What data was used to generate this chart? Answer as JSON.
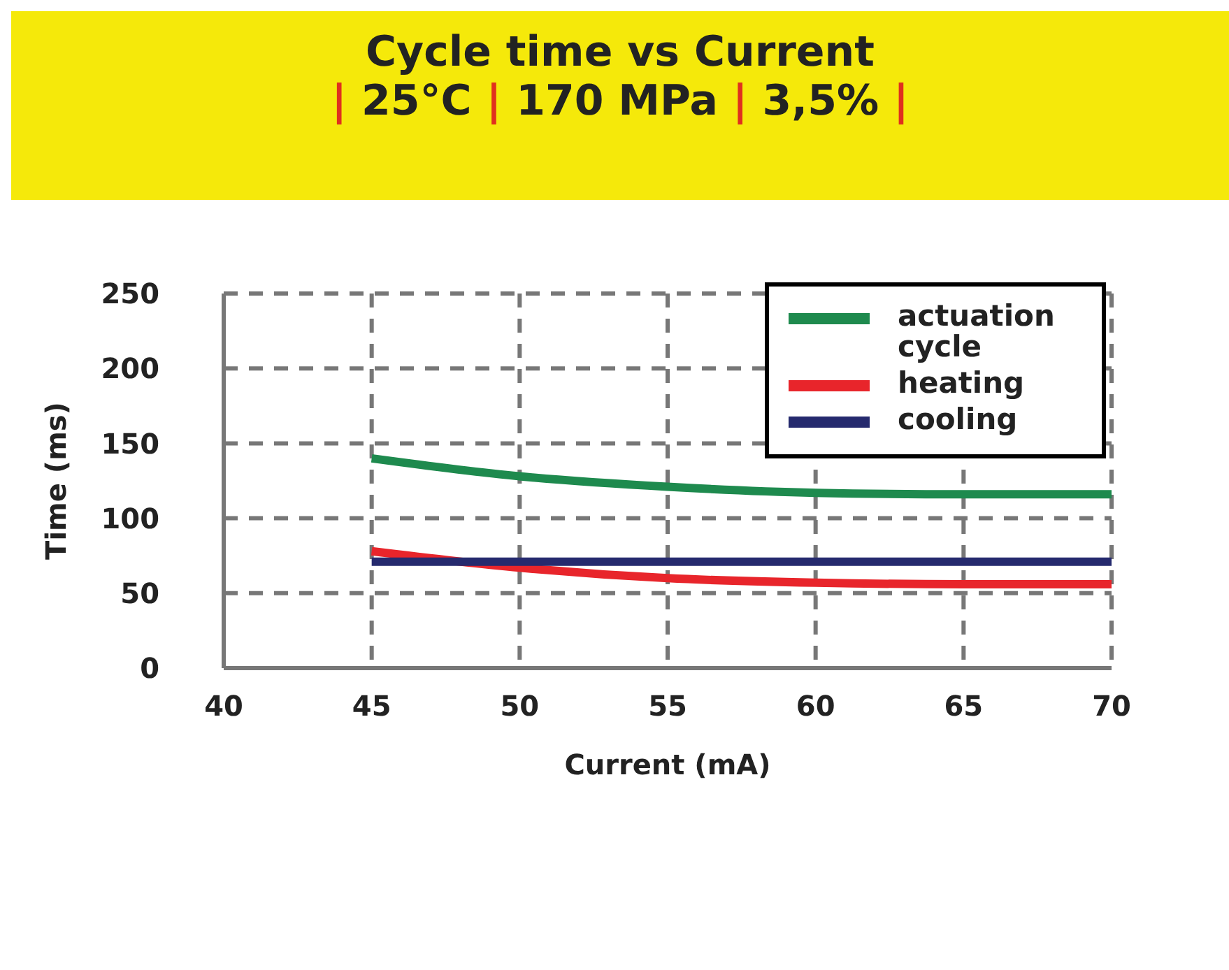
{
  "chart_data": {
    "type": "line",
    "title": "Cycle time vs Current",
    "subtitle": "| 25°C | 170 MPa | 3,5% |",
    "xlabel": "Current (mA)",
    "ylabel": "Time (ms)",
    "x": [
      45,
      50,
      55,
      60,
      65,
      70
    ],
    "series": [
      {
        "name": "actuation cycle",
        "color": "#1e8a4e",
        "values": [
          140,
          128,
          121,
          117,
          116,
          116
        ]
      },
      {
        "name": "heating",
        "color": "#e8252b",
        "values": [
          78,
          67,
          60,
          57,
          56,
          56
        ]
      },
      {
        "name": "cooling",
        "color": "#252a6e",
        "values": [
          71,
          71,
          71,
          71,
          71,
          71
        ]
      }
    ],
    "xlim": [
      40,
      70
    ],
    "xticks": [
      40,
      45,
      50,
      55,
      60,
      65,
      70
    ],
    "ylim": [
      0,
      250
    ],
    "yticks": [
      0,
      50,
      100,
      150,
      200,
      250
    ],
    "grid": true,
    "legend": "top right",
    "marker": "none",
    "line_style": "solid"
  }
}
